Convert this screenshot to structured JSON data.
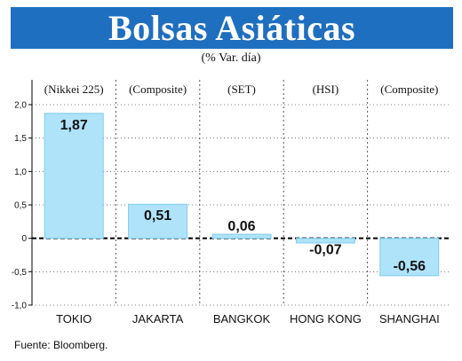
{
  "header": {
    "title": "Bolsas Asiáticas",
    "subtitle": "(% Var. día)"
  },
  "source": "Fuente: Bloomberg.",
  "colors": {
    "banner": "#1f6fc0",
    "bar": "#aee3fa",
    "bar_stroke": "#7fcdf2",
    "axis": "#000000",
    "grid": "#555555"
  },
  "chart_data": {
    "type": "bar",
    "title": "Bolsas Asiáticas",
    "subtitle": "(% Var. día)",
    "categories": [
      "TOKIO",
      "JAKARTA",
      "BANGKOK",
      "HONG KONG",
      "SHANGHAI"
    ],
    "indices": [
      "(Nikkei 225)",
      "(Composite)",
      "(SET)",
      "(HSI)",
      "(Composite)"
    ],
    "values": [
      1.87,
      0.51,
      0.06,
      -0.07,
      -0.56
    ],
    "value_labels": [
      "1,87",
      "0,51",
      "0,06",
      "-0,07",
      "-0,56"
    ],
    "ylim": [
      -1.0,
      2.0
    ],
    "yticks": [
      2.0,
      1.5,
      1.0,
      0.5,
      0,
      -0.5,
      -1.0
    ],
    "ytick_labels": [
      "2,0",
      "1,5",
      "1,0",
      "0,5",
      "0",
      "-0,5",
      "-1,0"
    ],
    "grid": true,
    "source": "Fuente: Bloomberg."
  }
}
